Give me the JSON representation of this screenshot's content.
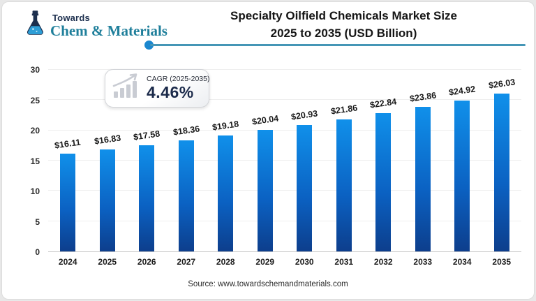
{
  "brand": {
    "towards": "Towards",
    "name": "Chem & Materials"
  },
  "header": {
    "title_line1": "Specialty Oilfield Chemicals Market Size",
    "title_line2": "2025 to 2035 (USD Billion)"
  },
  "cagr_badge": {
    "label": "CAGR (2025-2035)",
    "value": "4.46%"
  },
  "chart_data": {
    "type": "bar",
    "title": "Specialty Oilfield Chemicals Market Size 2025 to 2035 (USD Billion)",
    "categories": [
      "2024",
      "2025",
      "2026",
      "2027",
      "2028",
      "2029",
      "2030",
      "2031",
      "2032",
      "2033",
      "2034",
      "2035"
    ],
    "values": [
      16.11,
      16.83,
      17.58,
      18.36,
      19.18,
      20.04,
      20.93,
      21.86,
      22.84,
      23.86,
      24.92,
      26.03
    ],
    "value_labels": [
      "$16.11",
      "$16.83",
      "$17.58",
      "$18.36",
      "$19.18",
      "$20.04",
      "$20.93",
      "$21.86",
      "$22.84",
      "$23.86",
      "$24.92",
      "$26.03"
    ],
    "xlabel": "",
    "ylabel": "",
    "ylim": [
      0,
      30
    ],
    "yticks": [
      0,
      5,
      10,
      15,
      20,
      25,
      30
    ],
    "grid": true,
    "legend": false,
    "bar_colors": {
      "top": "#1090ea",
      "mid": "#0b61c2",
      "bottom": "#0d3e8c"
    }
  },
  "footer": {
    "source": "Source: www.towardschemandmaterials.com"
  },
  "colors": {
    "divider_teal": "#4596b6",
    "dot_blue": "#1b87cf",
    "brand_navy": "#1c2f4e",
    "brand_teal": "#1f7f9b",
    "badge_icon_gray": "#c9ccd3"
  }
}
